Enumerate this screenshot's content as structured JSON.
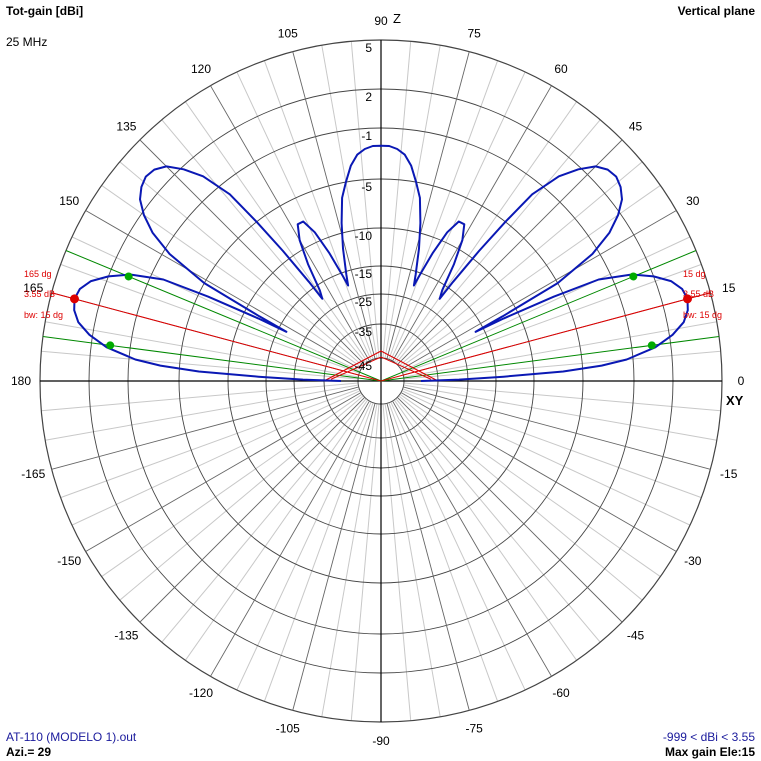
{
  "header": {
    "title": "Tot-gain [dBi]",
    "frequency": "25 MHz",
    "plane": "Vertical plane"
  },
  "footer": {
    "filename": "AT-110 (MODELO 1).out",
    "azimuth": "Azi.= 29",
    "range": "-999 < dBi < 3.55",
    "max_gain": "Max gain Ele:15"
  },
  "axis_labels": {
    "z": "Z",
    "xy": "XY"
  },
  "markers": {
    "right": {
      "angle": "15 dg",
      "gain": "3.55 dB",
      "bw": "bw: 15 dg"
    },
    "left": {
      "angle": "165 dg",
      "gain": "3.55 dB",
      "bw": "bw: 15 dg"
    }
  },
  "colors": {
    "pattern": "#0a18b4",
    "grid": "#000000",
    "marker": "#dd0000",
    "beam": "#008800",
    "footer_text": "#1a1a9c"
  },
  "chart_data": {
    "type": "polar-line",
    "title": "Tot-gain [dBi]",
    "angle_unit": "degrees elevation",
    "angle_ticks": [
      0,
      15,
      30,
      45,
      60,
      75,
      90,
      105,
      120,
      135,
      150,
      165,
      180,
      -165,
      -150,
      -135,
      -120,
      -105,
      -90,
      -75,
      -60,
      -45,
      -30,
      -15
    ],
    "radial_ticks": [
      5,
      2,
      -1,
      -5,
      -10,
      -15,
      -25,
      -35,
      -45
    ],
    "gain_range": [
      -999,
      3.55
    ],
    "max_gain_dbi": 3.55,
    "max_gain_elevation": 15,
    "beamwidth_deg": 15,
    "series": [
      {
        "values": [
          [
            0,
            -40
          ],
          [
            1,
            -28
          ],
          [
            2,
            -14
          ],
          [
            3,
            -7
          ],
          [
            4,
            -3.5
          ],
          [
            5,
            -1.5
          ],
          [
            7,
            0.8
          ],
          [
            9,
            2.2
          ],
          [
            11,
            3.0
          ],
          [
            13,
            3.4
          ],
          [
            15,
            3.55
          ],
          [
            17,
            3.4
          ],
          [
            19,
            2.9
          ],
          [
            21,
            2.0
          ],
          [
            23,
            0.5
          ],
          [
            25,
            -2
          ],
          [
            26,
            -6
          ],
          [
            27,
            -12
          ],
          [
            27.5,
            -18
          ],
          [
            28,
            -12
          ],
          [
            29,
            -5
          ],
          [
            31,
            -1.5
          ],
          [
            33,
            0.5
          ],
          [
            35,
            1.8
          ],
          [
            37,
            2.6
          ],
          [
            39,
            3.0
          ],
          [
            41,
            3.2
          ],
          [
            43,
            3.1
          ],
          [
            45,
            2.7
          ],
          [
            47,
            1.8
          ],
          [
            49,
            0.4
          ],
          [
            51,
            -2
          ],
          [
            52,
            -5
          ],
          [
            53,
            -9
          ],
          [
            54,
            -14
          ],
          [
            54.5,
            -20
          ],
          [
            56,
            -17
          ],
          [
            58,
            -12
          ],
          [
            60,
            -9
          ],
          [
            62,
            -7.5
          ],
          [
            64,
            -7.5
          ],
          [
            66,
            -9
          ],
          [
            68,
            -12
          ],
          [
            70,
            -16
          ],
          [
            71,
            -20
          ],
          [
            72,
            -16
          ],
          [
            74,
            -12
          ],
          [
            76,
            -9
          ],
          [
            78,
            -6.5
          ],
          [
            80,
            -5
          ],
          [
            82,
            -3.8
          ],
          [
            84,
            -3
          ],
          [
            86,
            -2.6
          ],
          [
            88,
            -2.4
          ],
          [
            90,
            -2.4
          ],
          [
            92,
            -2.4
          ],
          [
            94,
            -2.6
          ],
          [
            96,
            -3
          ],
          [
            98,
            -3.8
          ],
          [
            100,
            -5
          ],
          [
            102,
            -6.5
          ],
          [
            104,
            -9
          ],
          [
            106,
            -12
          ],
          [
            108,
            -16
          ],
          [
            109,
            -20
          ],
          [
            110,
            -16
          ],
          [
            112,
            -12
          ],
          [
            114,
            -9
          ],
          [
            116,
            -7.5
          ],
          [
            118,
            -7.5
          ],
          [
            120,
            -9
          ],
          [
            122,
            -12
          ],
          [
            124,
            -17
          ],
          [
            125.5,
            -20
          ],
          [
            126,
            -14
          ],
          [
            127,
            -9
          ],
          [
            128,
            -5
          ],
          [
            129,
            -2
          ],
          [
            131,
            0.4
          ],
          [
            133,
            1.8
          ],
          [
            135,
            2.7
          ],
          [
            137,
            3.1
          ],
          [
            139,
            3.2
          ],
          [
            141,
            3.0
          ],
          [
            143,
            2.6
          ],
          [
            145,
            1.8
          ],
          [
            147,
            0.5
          ],
          [
            149,
            -1.5
          ],
          [
            151,
            -5
          ],
          [
            152,
            -12
          ],
          [
            152.5,
            -18
          ],
          [
            153,
            -12
          ],
          [
            154,
            -6
          ],
          [
            155,
            -2
          ],
          [
            157,
            0.5
          ],
          [
            159,
            2.0
          ],
          [
            161,
            2.9
          ],
          [
            163,
            3.4
          ],
          [
            165,
            3.55
          ],
          [
            167,
            3.4
          ],
          [
            169,
            3.0
          ],
          [
            171,
            2.2
          ],
          [
            173,
            0.8
          ],
          [
            175,
            -1.5
          ],
          [
            176,
            -3.5
          ],
          [
            177,
            -7
          ],
          [
            178,
            -14
          ],
          [
            179,
            -28
          ],
          [
            180,
            -40
          ]
        ]
      }
    ],
    "beam_markers": [
      {
        "peak_elevation": 15,
        "half_power_edges": [
          7.5,
          22.5
        ]
      },
      {
        "peak_elevation": 165,
        "half_power_edges": [
          157.5,
          172.5
        ]
      }
    ]
  }
}
